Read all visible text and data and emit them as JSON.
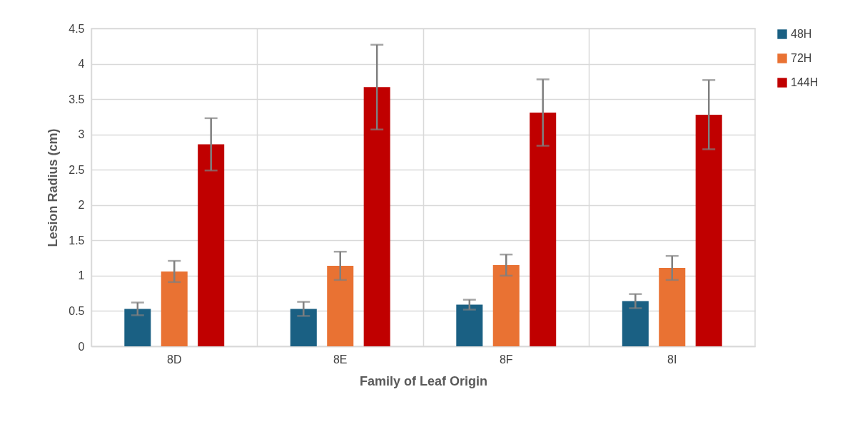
{
  "chart_data": {
    "type": "bar",
    "xlabel": "Family of Leaf Origin",
    "ylabel": "Lesion Radius (cm)",
    "categories": [
      "8D",
      "8E",
      "8F",
      "8I"
    ],
    "series": [
      {
        "name": "48H",
        "color": "#1a6083",
        "values": [
          0.53,
          0.53,
          0.59,
          0.64
        ],
        "errors": [
          0.09,
          0.1,
          0.07,
          0.1
        ]
      },
      {
        "name": "72H",
        "color": "#e97233",
        "values": [
          1.06,
          1.14,
          1.15,
          1.11
        ],
        "errors": [
          0.15,
          0.2,
          0.15,
          0.17
        ]
      },
      {
        "name": "144H",
        "color": "#c00000",
        "values": [
          2.86,
          3.67,
          3.31,
          3.28
        ],
        "errors": [
          0.37,
          0.6,
          0.47,
          0.49
        ]
      }
    ],
    "ylim": [
      0,
      4.5
    ],
    "yticks": [
      0,
      0.5,
      1,
      1.5,
      2,
      2.5,
      3,
      3.5,
      4,
      4.5
    ],
    "grid": true,
    "legend": "right"
  }
}
